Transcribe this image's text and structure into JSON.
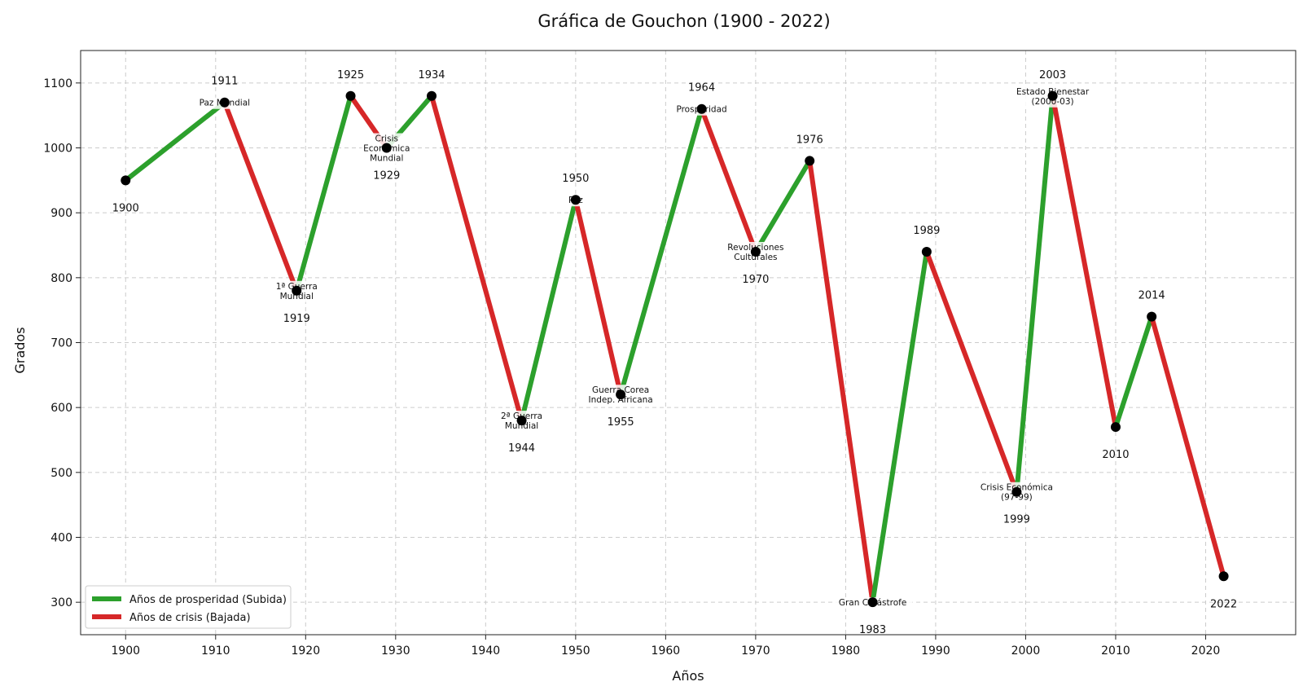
{
  "chart_data": {
    "type": "line",
    "title": "Gráfica de Gouchon (1900 - 2022)",
    "xlabel": "Años",
    "ylabel": "Grados",
    "xlim": [
      1895,
      2030
    ],
    "ylim": [
      250,
      1150
    ],
    "x_ticks": [
      1900,
      1910,
      1920,
      1930,
      1940,
      1950,
      1960,
      1970,
      1980,
      1990,
      2000,
      2010,
      2020
    ],
    "y_ticks": [
      300,
      400,
      500,
      600,
      700,
      800,
      900,
      1000,
      1100
    ],
    "grid": true,
    "colors": {
      "up": "#2ca02c",
      "down": "#d62728",
      "point": "#000000"
    },
    "legend": {
      "position": "bottom-left",
      "entries": [
        {
          "label": "Años de prosperidad (Subida)",
          "color": "#2ca02c"
        },
        {
          "label": "Años de crisis (Bajada)",
          "color": "#d62728"
        }
      ]
    },
    "points": [
      {
        "x": 1900,
        "y": 950,
        "label": "1900",
        "event": []
      },
      {
        "x": 1911,
        "y": 1070,
        "label": "1911",
        "event": [
          "Paz Mundial"
        ]
      },
      {
        "x": 1919,
        "y": 780,
        "label": "1919",
        "event": [
          "1ª Guerra",
          "Mundial"
        ]
      },
      {
        "x": 1925,
        "y": 1080,
        "label": "1925",
        "event": []
      },
      {
        "x": 1929,
        "y": 1000,
        "label": "1929",
        "event": [
          "Crisis",
          "Económica",
          "Mundial"
        ]
      },
      {
        "x": 1934,
        "y": 1080,
        "label": "1934",
        "event": []
      },
      {
        "x": 1944,
        "y": 580,
        "label": "1944",
        "event": [
          "2ª Guerra",
          "Mundial"
        ]
      },
      {
        "x": 1950,
        "y": 920,
        "label": "1950",
        "event": [
          "Paz"
        ]
      },
      {
        "x": 1955,
        "y": 620,
        "label": "1955",
        "event": [
          "Guerra Corea",
          "Indep. Africana"
        ]
      },
      {
        "x": 1964,
        "y": 1060,
        "label": "1964",
        "event": [
          "Prosperidad"
        ]
      },
      {
        "x": 1970,
        "y": 840,
        "label": "1970",
        "event": [
          "Revoluciones",
          "Culturales"
        ]
      },
      {
        "x": 1976,
        "y": 980,
        "label": "1976",
        "event": []
      },
      {
        "x": 1983,
        "y": 300,
        "label": "1983",
        "event": [
          "Gran Catástrofe"
        ]
      },
      {
        "x": 1989,
        "y": 840,
        "label": "1989",
        "event": []
      },
      {
        "x": 1999,
        "y": 470,
        "label": "1999",
        "event": [
          "Crisis Económica",
          "(97-99)"
        ]
      },
      {
        "x": 2003,
        "y": 1080,
        "label": "2003",
        "event": [
          "Estado Bienestar",
          "(2000-03)"
        ]
      },
      {
        "x": 2010,
        "y": 570,
        "label": "2010",
        "event": []
      },
      {
        "x": 2014,
        "y": 740,
        "label": "2014",
        "event": []
      },
      {
        "x": 2022,
        "y": 340,
        "label": "2022",
        "event": []
      }
    ]
  }
}
